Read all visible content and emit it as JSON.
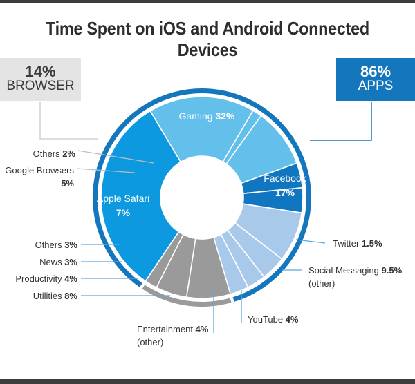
{
  "chart_data": {
    "type": "pie",
    "title": "Time Spent on iOS and Android Connected Devices",
    "groups": [
      {
        "name": "APPS",
        "percent": "86%"
      },
      {
        "name": "BROWSER",
        "percent": "14%"
      }
    ],
    "slices": [
      {
        "group": "apps",
        "value": 32,
        "label": "Gaming",
        "value_label": "32%",
        "color": "#0c99e0"
      },
      {
        "group": "apps",
        "value": 17,
        "label": "Facebook",
        "value_label": "17%",
        "color": "#62c0ea"
      },
      {
        "group": "apps",
        "value": 1.5,
        "label": "Twitter",
        "value_label": "1.5%",
        "color": "#62c0ea"
      },
      {
        "group": "apps",
        "value": 9.5,
        "label": "Social Messaging",
        "value_label": "9.5%",
        "sub": "(other)",
        "color": "#62c0ea"
      },
      {
        "group": "apps",
        "value": 4,
        "label": "YouTube",
        "value_label": "4%",
        "color": "#1176c0"
      },
      {
        "group": "apps",
        "value": 4,
        "label": "Entertainment",
        "value_label": "4%",
        "sub": "(other)",
        "color": "#1176c0"
      },
      {
        "group": "apps",
        "value": 8,
        "label": "Utilities",
        "value_label": "8%",
        "color": "#a9c9ea"
      },
      {
        "group": "apps",
        "value": 4,
        "label": "Productivity",
        "value_label": "4%",
        "color": "#a9c9ea"
      },
      {
        "group": "apps",
        "value": 3,
        "label": "News",
        "value_label": "3%",
        "color": "#a9c9ea"
      },
      {
        "group": "apps",
        "value": 3,
        "label": "Others",
        "value_label": "3%",
        "color": "#a9c9ea"
      },
      {
        "group": "browser",
        "value": 7,
        "label": "Apple Safari",
        "value_label": "7%",
        "color": "#9a9a9a"
      },
      {
        "group": "browser",
        "value": 5,
        "label": "Google Browsers",
        "value_label": "5%",
        "color": "#9a9a9a"
      },
      {
        "group": "browser",
        "value": 2,
        "label": "Others",
        "value_label": "2%",
        "color": "#9a9a9a"
      }
    ],
    "colors": {
      "apps_ring": "#1476bd",
      "browser_ring": "#9a9a9a",
      "leader": "#5aa9dc",
      "browser_leader": "#bdbdbd"
    }
  }
}
